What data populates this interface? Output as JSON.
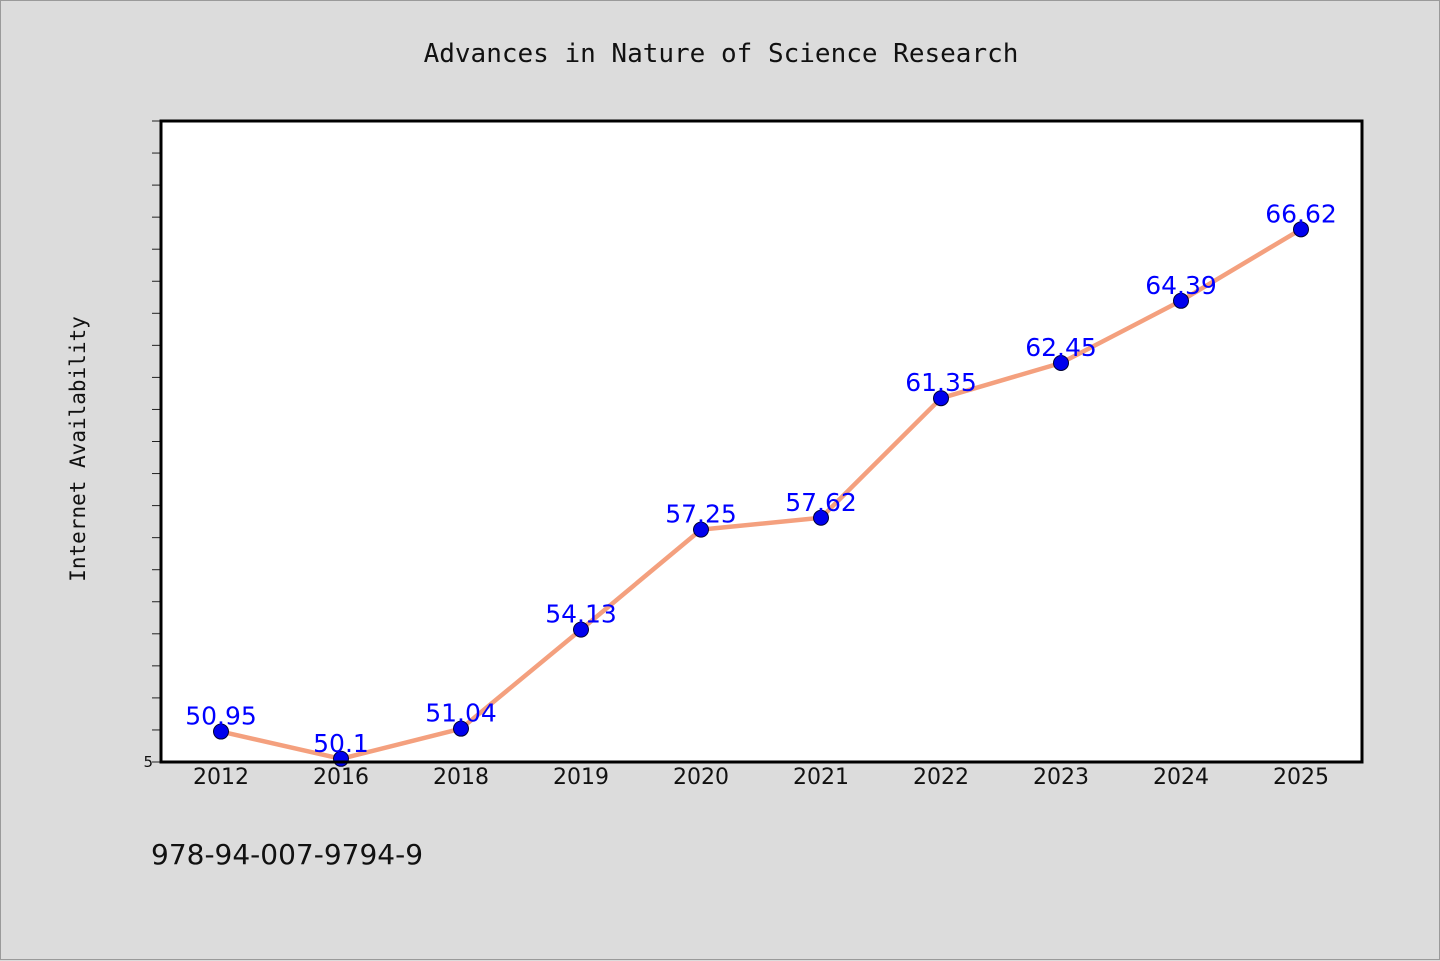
{
  "chart_data": {
    "type": "line",
    "title": "Advances in Nature of Science Research",
    "xlabel": "",
    "ylabel": "Internet Availability",
    "categories": [
      "2012",
      "2016",
      "2018",
      "2019",
      "2020",
      "2021",
      "2022",
      "2023",
      "2024",
      "2025"
    ],
    "series": [
      {
        "values": [
          50.95,
          50.1,
          51.04,
          54.13,
          57.25,
          57.62,
          61.35,
          62.45,
          64.39,
          66.62
        ],
        "data_labels": [
          "50.95",
          "50.1",
          "51.04",
          "54.13",
          "57.25",
          "57.62",
          "61.35",
          "62.45",
          "64.39",
          "66.62"
        ],
        "line_color": "#f4a07e",
        "marker_color": "#0000ee",
        "label_color": "#0000ff"
      }
    ],
    "ylim": [
      50,
      70
    ],
    "yticks_labeled": [
      "5"
    ],
    "grid": false,
    "legend": "none"
  },
  "footer": {
    "text": "978-94-007-9794-9"
  }
}
